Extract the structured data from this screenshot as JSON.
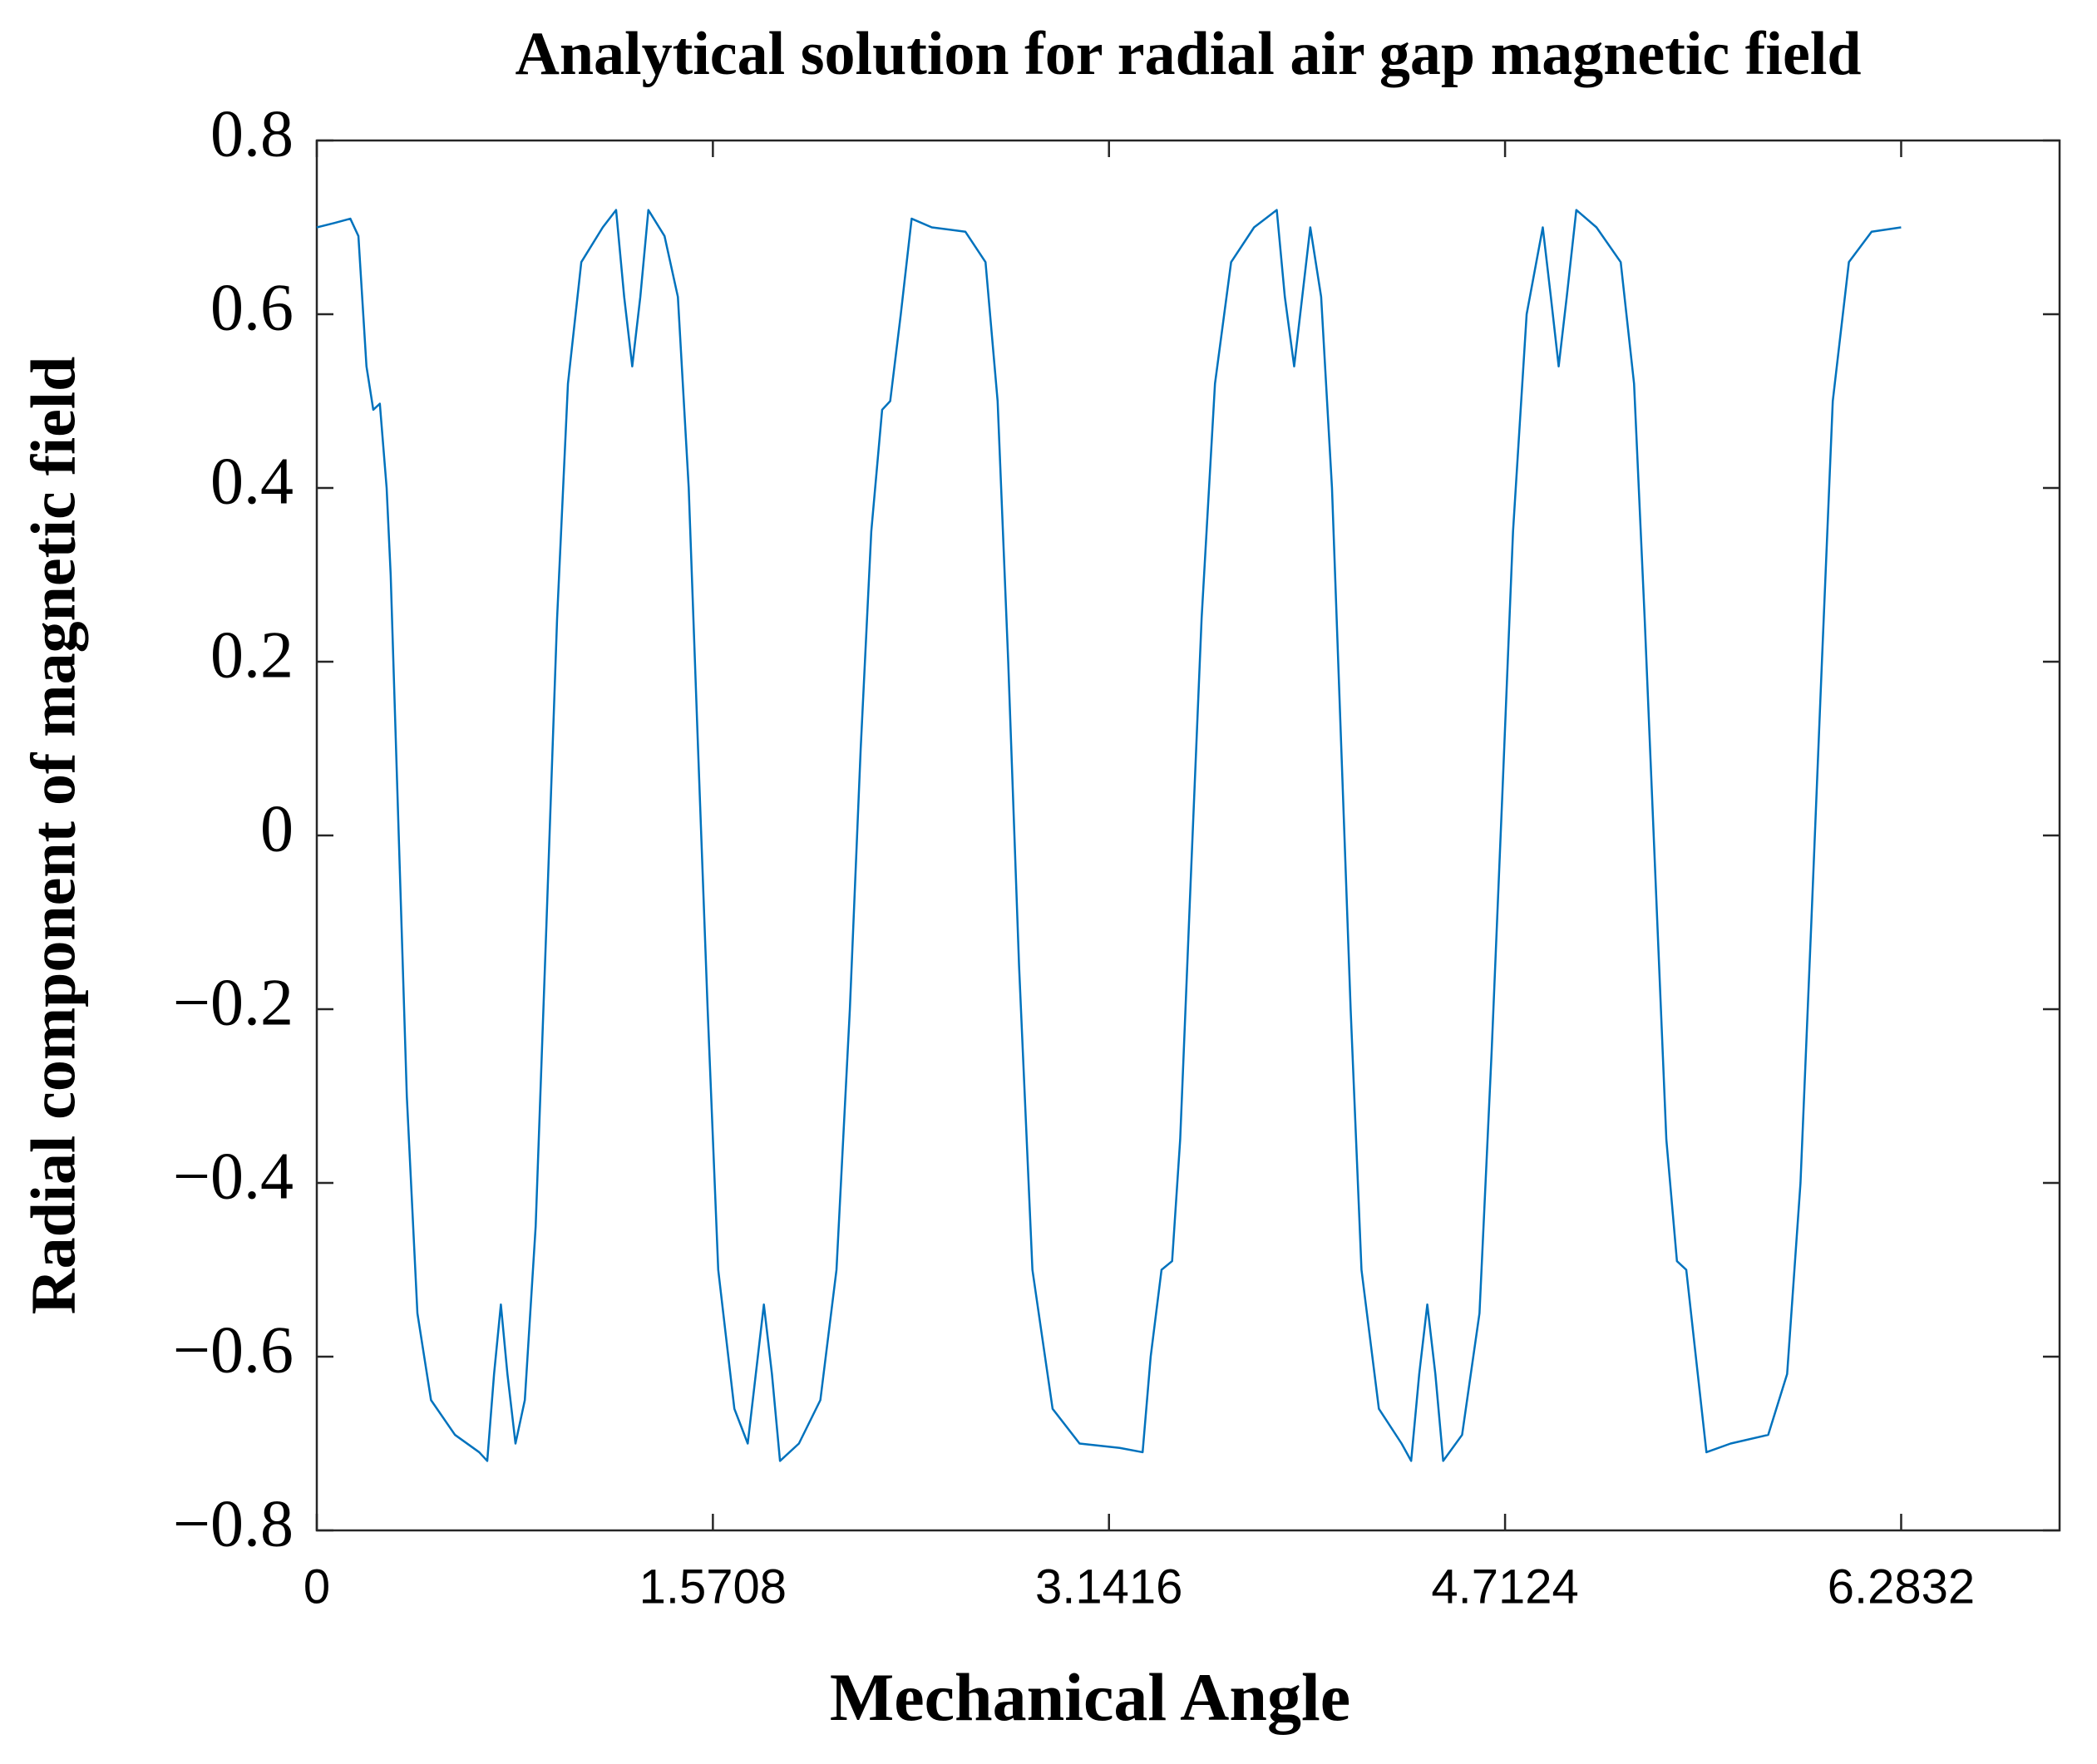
{
  "chart_data": {
    "type": "line",
    "title": "Analytical solution for radial air gap magnetic field",
    "x_label": "Mechanical Angle",
    "y_label": "Radial component of magnetic field",
    "color": "#0072bd",
    "xlim": [
      0,
      6.9115
    ],
    "ylim": [
      -0.8,
      0.8
    ],
    "xticks": [
      0,
      1.5708,
      3.1416,
      4.7124,
      6.2832
    ],
    "yticks": [
      {
        "value": -0.8,
        "label": "−0.8"
      },
      {
        "value": -0.6,
        "label": "−0.6"
      },
      {
        "value": -0.4,
        "label": "−0.4"
      },
      {
        "value": -0.2,
        "label": "−0.2"
      },
      0,
      0.2,
      0.4,
      0.6,
      0.8
    ],
    "x": [
      0,
      0.069,
      0.133,
      0.165,
      0.197,
      0.224,
      0.25,
      0.277,
      0.293,
      0.325,
      0.357,
      0.399,
      0.453,
      0.548,
      0.644,
      0.676,
      0.703,
      0.73,
      0.756,
      0.788,
      0.825,
      0.868,
      0.911,
      0.953,
      0.996,
      1.049,
      1.134,
      1.187,
      1.219,
      1.251,
      1.283,
      1.315,
      1.379,
      1.432,
      1.475,
      1.512,
      1.55,
      1.592,
      1.656,
      1.709,
      1.741,
      1.773,
      1.805,
      1.837,
      1.912,
      1.997,
      2.061,
      2.114,
      2.157,
      2.199,
      2.242,
      2.274,
      2.316,
      2.359,
      2.439,
      2.572,
      2.652,
      2.7,
      2.742,
      2.785,
      2.838,
      2.918,
      3.025,
      3.184,
      3.275,
      3.307,
      3.35,
      3.392,
      3.424,
      3.466,
      3.509,
      3.562,
      3.626,
      3.717,
      3.807,
      3.839,
      3.876,
      3.908,
      3.94,
      3.983,
      4.026,
      4.063,
      4.1,
      4.143,
      4.212,
      4.302,
      4.34,
      4.372,
      4.404,
      4.436,
      4.467,
      4.542,
      4.611,
      4.659,
      4.702,
      4.744,
      4.798,
      4.862,
      4.894,
      4.925,
      4.957,
      4.995,
      5.075,
      5.171,
      5.224,
      5.266,
      5.309,
      5.352,
      5.394,
      5.431,
      5.469,
      5.511,
      5.607,
      5.756,
      5.831,
      5.884,
      5.927,
      5.969,
      6.012,
      6.076,
      6.166,
      6.283
    ],
    "values": [
      0.7,
      0.705,
      0.71,
      0.69,
      0.54,
      0.49,
      0.497,
      0.4,
      0.3,
      0.0,
      -0.3,
      -0.55,
      -0.65,
      -0.69,
      -0.71,
      -0.72,
      -0.62,
      -0.54,
      -0.62,
      -0.7,
      -0.65,
      -0.45,
      -0.1,
      0.25,
      0.52,
      0.66,
      0.7,
      0.72,
      0.62,
      0.54,
      0.62,
      0.72,
      0.69,
      0.62,
      0.4,
      0.1,
      -0.2,
      -0.5,
      -0.66,
      -0.7,
      -0.62,
      -0.54,
      -0.62,
      -0.72,
      -0.7,
      -0.65,
      -0.5,
      -0.2,
      0.1,
      0.35,
      0.49,
      0.5,
      0.6,
      0.71,
      0.7,
      0.695,
      0.66,
      0.5,
      0.2,
      -0.15,
      -0.5,
      -0.66,
      -0.7,
      -0.705,
      -0.71,
      -0.6,
      -0.5,
      -0.49,
      -0.35,
      -0.05,
      0.25,
      0.52,
      0.66,
      0.7,
      0.72,
      0.62,
      0.54,
      0.62,
      0.7,
      0.62,
      0.4,
      0.1,
      -0.2,
      -0.5,
      -0.66,
      -0.7,
      -0.72,
      -0.62,
      -0.54,
      -0.62,
      -0.72,
      -0.69,
      -0.55,
      -0.25,
      0.05,
      0.35,
      0.6,
      0.7,
      0.62,
      0.54,
      0.62,
      0.72,
      0.7,
      0.66,
      0.52,
      0.25,
      -0.05,
      -0.35,
      -0.49,
      -0.5,
      -0.6,
      -0.71,
      -0.7,
      -0.69,
      -0.62,
      -0.4,
      -0.1,
      0.2,
      0.5,
      0.66,
      0.695,
      0.7
    ]
  }
}
